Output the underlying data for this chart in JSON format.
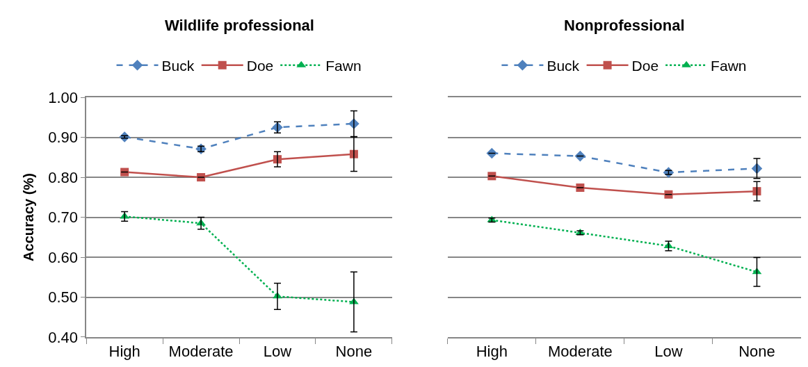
{
  "chart_data": [
    {
      "type": "line",
      "title": "Wildlife professional",
      "ylabel": "Accuracy (%)",
      "categories": [
        "High",
        "Moderate",
        "Low",
        "None"
      ],
      "ylim": [
        0.4,
        1.0
      ],
      "yticks": [
        {
          "value": 0.4,
          "label": "0.40"
        },
        {
          "value": 0.5,
          "label": "0.50"
        },
        {
          "value": 0.6,
          "label": "0.60"
        },
        {
          "value": 0.7,
          "label": "0.70"
        },
        {
          "value": 0.8,
          "label": "0.80"
        },
        {
          "value": 0.9,
          "label": "0.90"
        },
        {
          "value": 1.0,
          "label": "1.00"
        }
      ],
      "grid": "y",
      "legend": "top",
      "series": [
        {
          "name": "Buck",
          "color": "#4f81bd",
          "marker": "diamond",
          "line_style": "dashed",
          "values": [
            0.901,
            0.871,
            0.925,
            0.934
          ],
          "errors": [
            0.003,
            0.007,
            0.014,
            0.032
          ]
        },
        {
          "name": "Doe",
          "color": "#c0504d",
          "marker": "square",
          "line_style": "solid",
          "values": [
            0.813,
            0.8,
            0.845,
            0.858
          ],
          "errors": [
            null,
            null,
            0.019,
            0.043
          ]
        },
        {
          "name": "Fawn",
          "color": "#00b050",
          "marker": "triangle",
          "line_style": "dotted",
          "values": [
            0.702,
            0.685,
            0.502,
            0.488
          ],
          "errors": [
            0.012,
            0.015,
            0.033,
            0.075
          ]
        }
      ]
    },
    {
      "type": "line",
      "title": "Nonprofessional",
      "categories": [
        "High",
        "Moderate",
        "Low",
        "None"
      ],
      "ylim": [
        0.4,
        1.0
      ],
      "yticks": [
        {
          "value": 0.4,
          "label": null
        },
        {
          "value": 0.5,
          "label": null
        },
        {
          "value": 0.6,
          "label": null
        },
        {
          "value": 0.7,
          "label": null
        },
        {
          "value": 0.8,
          "label": null
        },
        {
          "value": 0.9,
          "label": null
        },
        {
          "value": 1.0,
          "label": null
        }
      ],
      "grid": "y",
      "legend": "top",
      "tick_labels": "x",
      "series": [
        {
          "name": "Buck",
          "color": "#4f81bd",
          "marker": "diamond",
          "line_style": "dashed",
          "values": [
            0.86,
            0.853,
            0.812,
            0.822
          ],
          "errors": [
            null,
            null,
            0.005,
            0.025
          ]
        },
        {
          "name": "Doe",
          "color": "#c0504d",
          "marker": "square",
          "line_style": "solid",
          "values": [
            0.803,
            0.774,
            0.757,
            0.765
          ],
          "errors": [
            null,
            null,
            null,
            0.024
          ]
        },
        {
          "name": "Fawn",
          "color": "#00b050",
          "marker": "triangle",
          "line_style": "dotted",
          "values": [
            0.693,
            0.661,
            0.628,
            0.563
          ],
          "errors": [
            0.005,
            0.005,
            0.012,
            0.036
          ]
        }
      ]
    }
  ]
}
